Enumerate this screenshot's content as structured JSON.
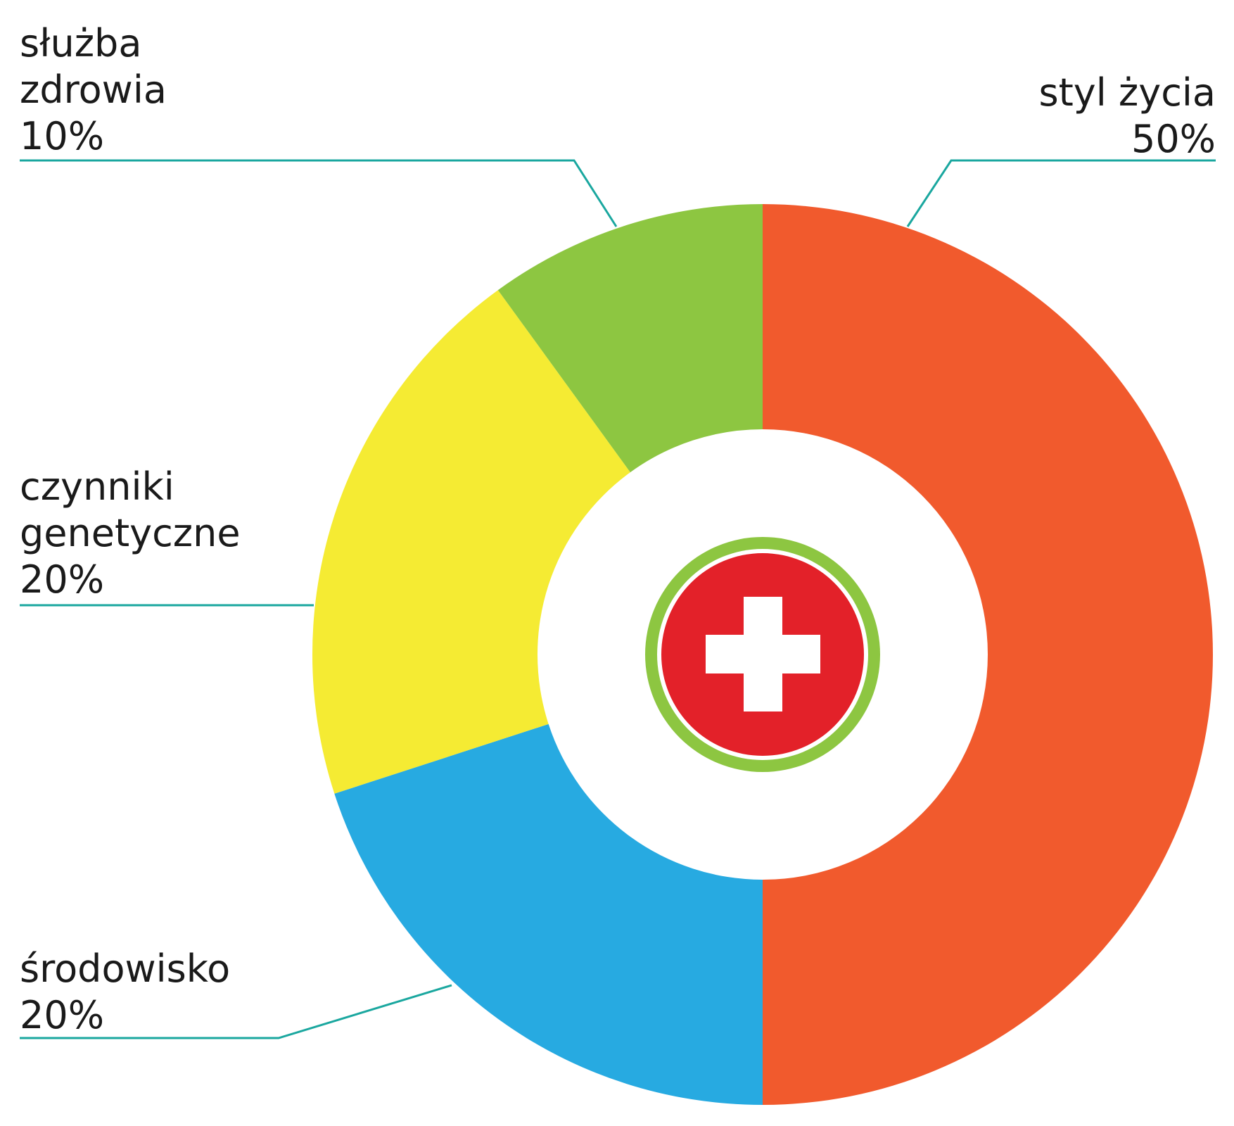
{
  "chart_data": {
    "type": "pie",
    "title": "",
    "slices": [
      {
        "name": "styl życia",
        "label": "styl życia",
        "value": 50,
        "value_label": "50%",
        "color": "#f15a2d"
      },
      {
        "name": "środowisko",
        "label": "środowisko",
        "value": 20,
        "value_label": "20%",
        "color": "#27aae1"
      },
      {
        "name": "czynniki genetyczne",
        "label": "czynniki genetyczne",
        "value": 20,
        "value_label": "20%",
        "color": "#f5eb33"
      },
      {
        "name": "służba zdrowia",
        "label": "służba zdrowia",
        "value": 10,
        "value_label": "10%",
        "color": "#8dc641"
      }
    ],
    "start": "top",
    "direction": "clockwise",
    "hole": true,
    "leader_color": "#1aa79f",
    "center_icon": "medical-cross-icon"
  }
}
